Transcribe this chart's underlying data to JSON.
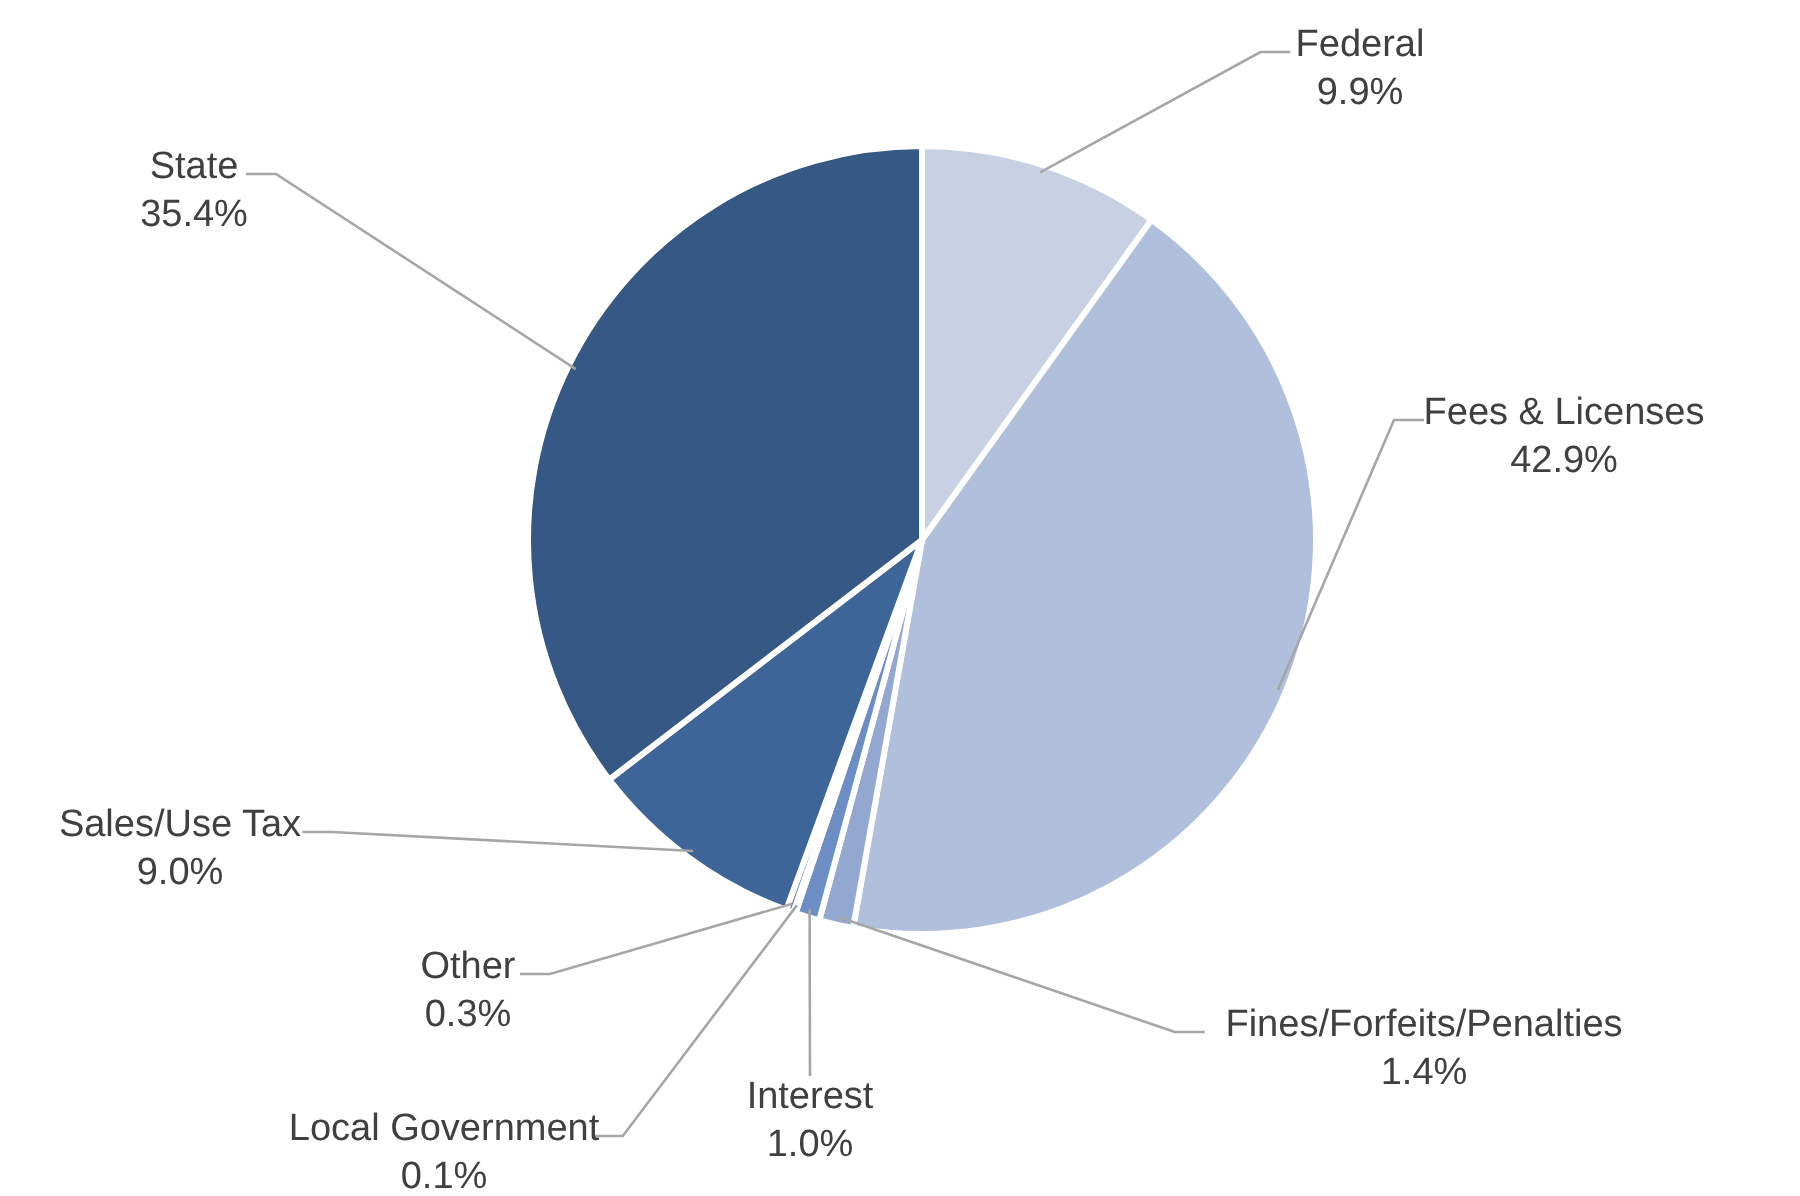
{
  "chart_data": {
    "type": "pie",
    "categories": [
      "Federal",
      "Fees & Licenses",
      "Fines/Forfeits/Penalties",
      "Interest",
      "Local Government",
      "Other",
      "Sales/Use Tax",
      "State"
    ],
    "values": [
      9.9,
      42.9,
      1.4,
      1.0,
      0.1,
      0.3,
      9.0,
      35.4
    ],
    "value_labels": [
      "9.9%",
      "42.9%",
      "1.4%",
      "1.0%",
      "0.1%",
      "0.3%",
      "9.0%",
      "35.4%"
    ],
    "colors": [
      "#c8d1e4",
      "#b0bfdc",
      "#93a8d0",
      "#6d8ec4",
      "#5a7fb8",
      "#4a70aa",
      "#3d6598",
      "#355884"
    ]
  }
}
